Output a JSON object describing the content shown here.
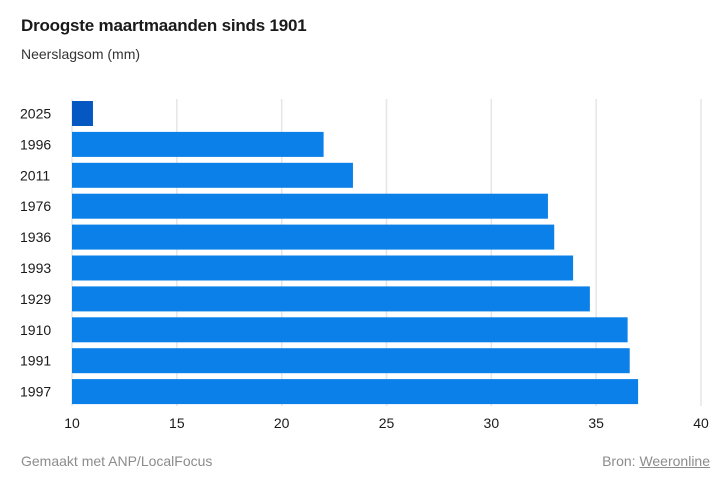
{
  "chart_data": {
    "type": "bar",
    "orientation": "horizontal",
    "title": "Droogste maartmaanden sinds 1901",
    "subtitle": "Neerslagsom (mm)",
    "categories": [
      "2025",
      "1996",
      "2011",
      "1976",
      "1936",
      "1993",
      "1929",
      "1910",
      "1991",
      "1997"
    ],
    "values": [
      11.0,
      22.0,
      23.4,
      32.7,
      33.0,
      33.9,
      34.7,
      36.5,
      36.6,
      37.0
    ],
    "xlim": [
      10,
      40
    ],
    "xticks": [
      10,
      15,
      20,
      25,
      30,
      35,
      40
    ],
    "grid": true,
    "colors": {
      "bar": "#0a80e8",
      "highlight": "#0558c2",
      "grid": "#e6e6e6"
    },
    "highlight_category": "2025"
  },
  "footer": {
    "made_with": "Gemaakt met ANP/LocalFocus",
    "source_label": "Bron:",
    "source_name": "Weeronline"
  }
}
